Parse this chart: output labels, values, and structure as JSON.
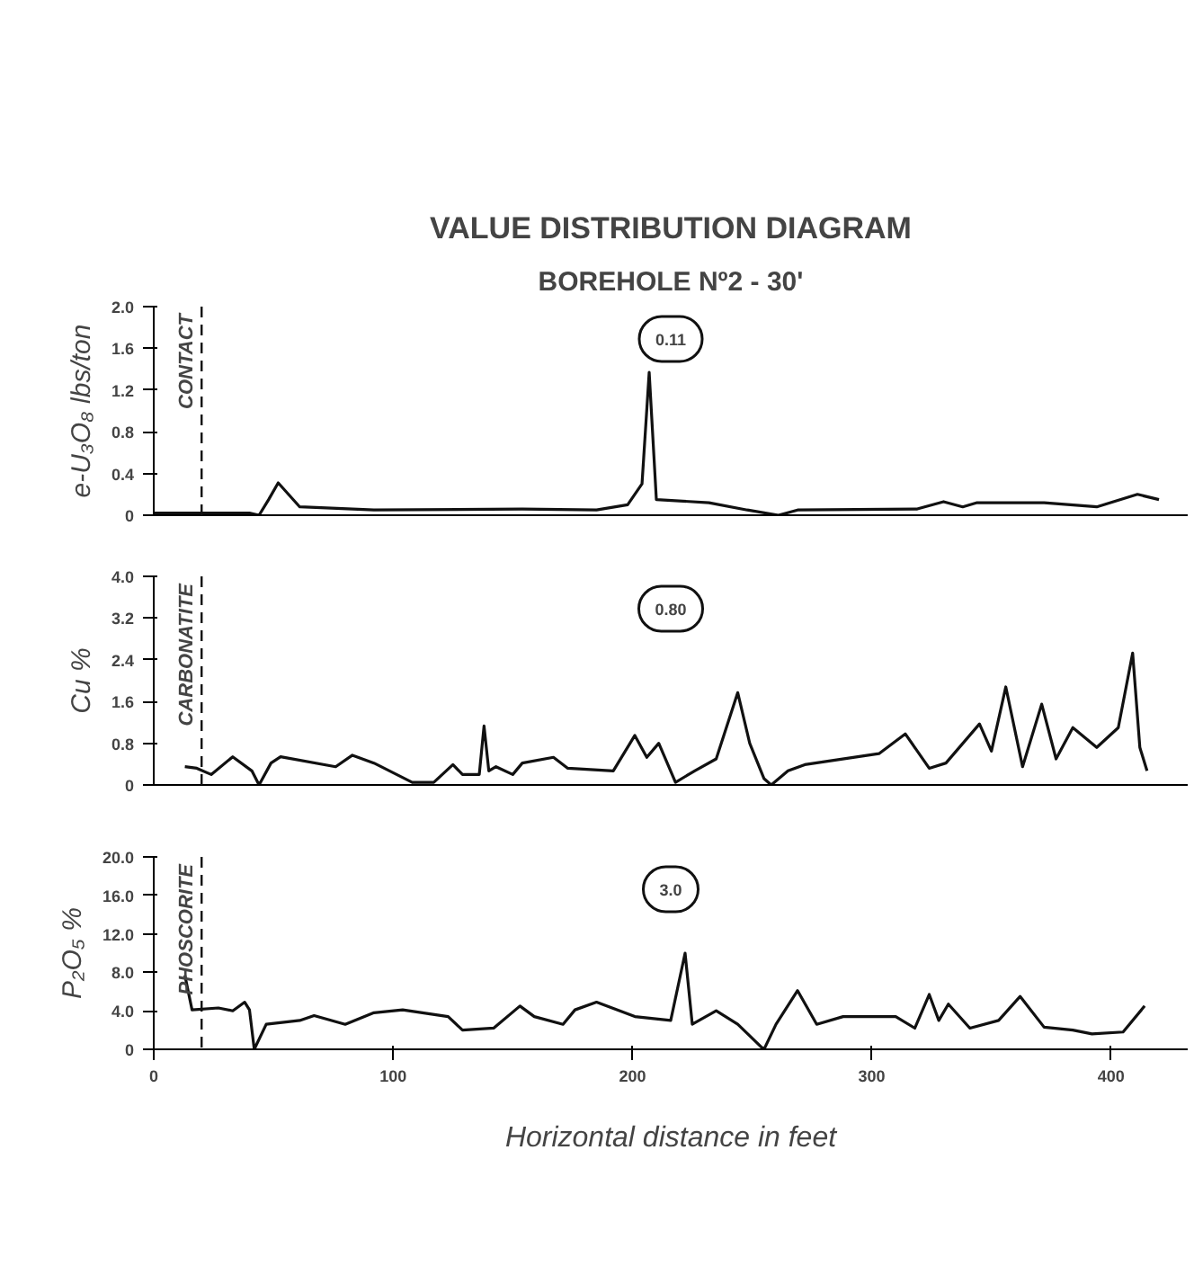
{
  "chart_data": [
    {
      "type": "line",
      "title": "VALUE DISTRIBUTION DIAGRAM",
      "subtitle": "BOREHOLE Nº2 - 30'",
      "ylabel": "e-U₃O₈ lbs/ton",
      "annotations": [
        "0.11"
      ],
      "color": "#111111",
      "grid": false,
      "tick_labels": "y",
      "xlim": [
        0,
        432
      ],
      "ylim": [
        0,
        2.0
      ],
      "yticks": [
        0,
        0.4,
        0.8,
        1.2,
        1.6,
        {
          "value": 2.0,
          "label": "2.0"
        }
      ],
      "ref_lines": [
        {
          "axis": "x",
          "value": 20,
          "label": "CONTACT",
          "line_style": "dashed"
        }
      ],
      "x": [
        0,
        20,
        40,
        44,
        48,
        52,
        61,
        92,
        154,
        185,
        198,
        204,
        207,
        210,
        232,
        248,
        261,
        269,
        319,
        330,
        338,
        344,
        372,
        394,
        411,
        420
      ],
      "values": [
        0.02,
        0.02,
        0.02,
        0,
        0.15,
        0.31,
        0.08,
        0.05,
        0.06,
        0.05,
        0.1,
        0.3,
        1.37,
        0.15,
        0.12,
        0.05,
        0,
        0.05,
        0.06,
        0.13,
        0.08,
        0.12,
        0.12,
        0.08,
        0.2,
        0.15
      ]
    },
    {
      "type": "line",
      "ylabel": "Cu %",
      "annotations": [
        "0.80"
      ],
      "color": "#111111",
      "grid": false,
      "tick_labels": "y",
      "xlim": [
        0,
        432
      ],
      "ylim": [
        0,
        4.0
      ],
      "yticks": [
        0,
        0.8,
        1.6,
        2.4,
        3.2,
        {
          "value": 4.0,
          "label": "4.0"
        }
      ],
      "ref_lines": [
        {
          "axis": "x",
          "value": 20,
          "label": "CARBONATITE",
          "line_style": "dashed"
        }
      ],
      "x": [
        13,
        18,
        24,
        33,
        41,
        44,
        49,
        53,
        76,
        83,
        92,
        108,
        117,
        125,
        129,
        136,
        138,
        140,
        143,
        150,
        154,
        167,
        173,
        192,
        201,
        206,
        211,
        218,
        226,
        235,
        244,
        249,
        255,
        258,
        265,
        272,
        303,
        314,
        324,
        331,
        345,
        350,
        356,
        363,
        371,
        377,
        384,
        394,
        403,
        409,
        412,
        415
      ],
      "values": [
        0.35,
        0.32,
        0.2,
        0.54,
        0.27,
        0,
        0.42,
        0.54,
        0.35,
        0.57,
        0.42,
        0.05,
        0.05,
        0.39,
        0.2,
        0.2,
        1.13,
        0.27,
        0.35,
        0.2,
        0.42,
        0.53,
        0.32,
        0.27,
        0.95,
        0.53,
        0.8,
        0.05,
        0.27,
        0.5,
        1.77,
        0.8,
        0.12,
        0,
        0.27,
        0.39,
        0.6,
        0.98,
        0.32,
        0.42,
        1.17,
        0.65,
        1.88,
        0.35,
        1.55,
        0.5,
        1.1,
        0.72,
        1.1,
        2.53,
        0.72,
        0.27
      ]
    },
    {
      "type": "line",
      "ylabel": "P₂O₅ %",
      "xlabel": "Horizontal distance in feet",
      "annotations": [
        "3.0"
      ],
      "color": "#111111",
      "grid": false,
      "xlim": [
        0,
        432
      ],
      "xticks": [
        0,
        100,
        200,
        300,
        400
      ],
      "ylim": [
        0,
        20.0
      ],
      "yticks": [
        0,
        {
          "value": 4,
          "label": "4.0"
        },
        {
          "value": 8,
          "label": "8.0"
        },
        {
          "value": 12,
          "label": "12.0"
        },
        {
          "value": 16,
          "label": "16.0"
        },
        {
          "value": 20,
          "label": "20.0"
        }
      ],
      "ref_lines": [
        {
          "axis": "x",
          "value": 20,
          "label": "PHOSCORITE",
          "line_style": "dashed"
        }
      ],
      "x": [
        13,
        16,
        27,
        33,
        38,
        40,
        42,
        47,
        61,
        67,
        80,
        92,
        104,
        123,
        129,
        142,
        153,
        159,
        171,
        176,
        185,
        201,
        216,
        222,
        225,
        235,
        244,
        254,
        255,
        260,
        269,
        277,
        288,
        310,
        318,
        324,
        328,
        332,
        341,
        353,
        362,
        372,
        384,
        392,
        405,
        414
      ],
      "values": [
        7.7,
        4.1,
        4.3,
        4.0,
        4.9,
        4.1,
        0,
        2.6,
        3.0,
        3.5,
        2.6,
        3.8,
        4.1,
        3.4,
        2.0,
        2.2,
        4.5,
        3.4,
        2.6,
        4.1,
        4.9,
        3.4,
        3.0,
        10.0,
        2.6,
        4.0,
        2.6,
        0.2,
        0,
        2.6,
        6.1,
        2.6,
        3.4,
        3.4,
        2.2,
        5.7,
        3.0,
        4.7,
        2.2,
        3.0,
        5.5,
        2.3,
        2.0,
        1.6,
        1.8,
        4.5
      ]
    }
  ]
}
